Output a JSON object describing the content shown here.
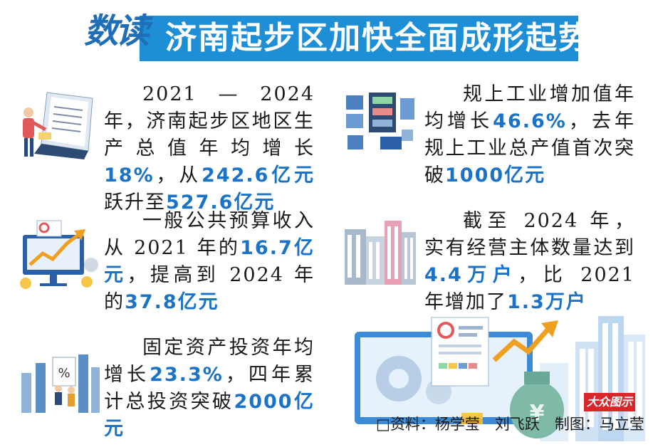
{
  "header": {
    "logo_text": "数读",
    "title": "济南起步区加快全面成形起势"
  },
  "blocks": [
    {
      "segments": [
        {
          "text": "2021 — 2024 年，济南起步区地区生产总值年均增长",
          "hl": false
        },
        {
          "text": "18%",
          "hl": true
        },
        {
          "text": "，从",
          "hl": false
        },
        {
          "text": "242.6亿元",
          "hl": true
        },
        {
          "text": "跃升至",
          "hl": false
        },
        {
          "text": "527.6亿元",
          "hl": true
        }
      ]
    },
    {
      "segments": [
        {
          "text": "一般公共预算收入从 2021 年的",
          "hl": false
        },
        {
          "text": "16.7亿元",
          "hl": true
        },
        {
          "text": "，提高到 2024 年的",
          "hl": false
        },
        {
          "text": "37.8亿元",
          "hl": true
        }
      ]
    },
    {
      "segments": [
        {
          "text": "固定资产投资年均增长",
          "hl": false
        },
        {
          "text": "23.3%",
          "hl": true
        },
        {
          "text": "，四年累计总投资突破",
          "hl": false
        },
        {
          "text": "2000亿元",
          "hl": true
        }
      ]
    },
    {
      "segments": [
        {
          "text": "规上工业增加值年均增长",
          "hl": false
        },
        {
          "text": "46.6%",
          "hl": true
        },
        {
          "text": "，去年规上工业总产值首次突破",
          "hl": false
        },
        {
          "text": "1000亿元",
          "hl": true
        }
      ]
    },
    {
      "segments": [
        {
          "text": "截至 2024 年，实有经营主体数量达到",
          "hl": false
        },
        {
          "text": "4.4万户",
          "hl": true
        },
        {
          "text": "，比 2021 年增加了",
          "hl": false
        },
        {
          "text": "1.3万户",
          "hl": true
        }
      ]
    }
  ],
  "illustration": {
    "percent_symbol": "%",
    "yen_symbol": "¥"
  },
  "credit": "□资料：杨学莹　刘飞跃　制图：马立莹",
  "watermark": "大众图示",
  "colors": {
    "accent": "#1e8fd6",
    "highlight": "#1b73c8",
    "watermark_bg": "#d9262a"
  }
}
